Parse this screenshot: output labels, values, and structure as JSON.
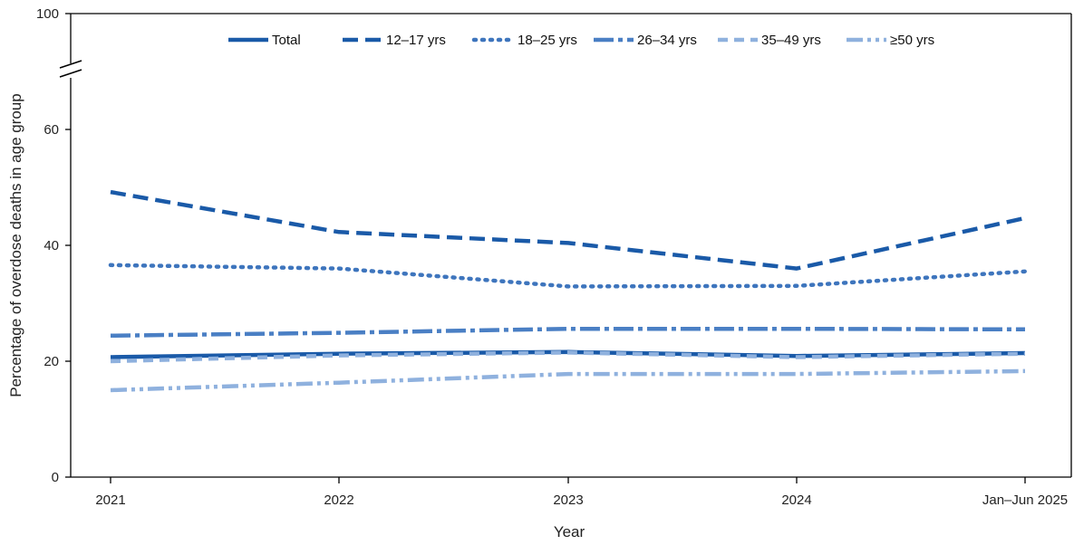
{
  "chart_data": {
    "type": "line",
    "xlabel": "Year",
    "ylabel": "Percentage of overdose deaths in age group",
    "categories": [
      "2021",
      "2022",
      "2023",
      "2024",
      "Jan–Jun 2025"
    ],
    "ylim": [
      0,
      100
    ],
    "y_ticks": [
      "0",
      "20",
      "40",
      "60",
      "100"
    ],
    "y_axis_break": "between 60 and 100",
    "grid": false,
    "legend_position": "top",
    "series": [
      {
        "name": "Total",
        "values": [
          20.7,
          21.3,
          21.6,
          20.9,
          21.4
        ],
        "color": "#1a5aa8",
        "style": "solid"
      },
      {
        "name": "12–17 yrs",
        "values": [
          49.2,
          42.3,
          40.4,
          36.0,
          44.7
        ],
        "color": "#1a5aa8",
        "style": "dashed"
      },
      {
        "name": "18–25 yrs",
        "values": [
          36.6,
          36.0,
          32.9,
          33.0,
          35.5
        ],
        "color": "#3e75bd",
        "style": "dotted"
      },
      {
        "name": "26–34 yrs",
        "values": [
          24.4,
          24.9,
          25.6,
          25.6,
          25.5
        ],
        "color": "#4a7fc4",
        "style": "dash-dot"
      },
      {
        "name": "35–49 yrs",
        "values": [
          20.0,
          21.0,
          21.5,
          20.7,
          21.3
        ],
        "color": "#8fb1de",
        "style": "dashed"
      },
      {
        "name": "≥50 yrs",
        "values": [
          15.0,
          16.3,
          17.8,
          17.8,
          18.3
        ],
        "color": "#8fb1de",
        "style": "dash-dot-dot"
      }
    ]
  }
}
